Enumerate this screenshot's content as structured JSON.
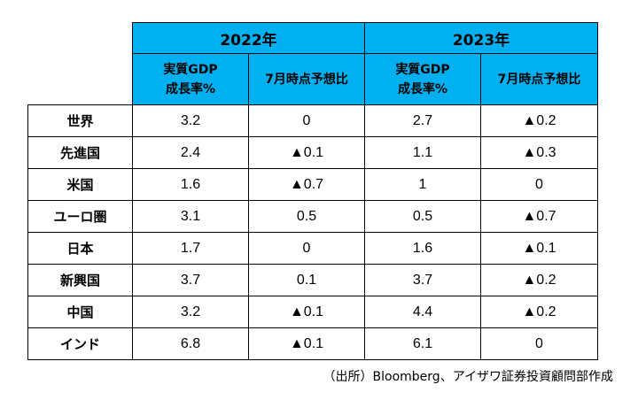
{
  "years": [
    "2022年",
    "2023年"
  ],
  "subheaders": [
    {
      "line1": "実質GDP",
      "line2": "成長率%"
    },
    {
      "line1": "7月時点予想比",
      "line2": ""
    },
    {
      "line1": "実質GDP",
      "line2": "成長率%"
    },
    {
      "line1": "7月時点予想比",
      "line2": ""
    }
  ],
  "rows": [
    {
      "name": "世界",
      "values": [
        "3.2",
        "0",
        "2.7",
        "▲0.2"
      ]
    },
    {
      "name": "先進国",
      "values": [
        "2.4",
        "▲0.1",
        "1.1",
        "▲0.3"
      ]
    },
    {
      "name": "米国",
      "values": [
        "1.6",
        "▲0.7",
        "1",
        "0"
      ]
    },
    {
      "name": "ユーロ圏",
      "values": [
        "3.1",
        "0.5",
        "0.5",
        "▲0.7"
      ]
    },
    {
      "name": "日本",
      "values": [
        "1.7",
        "0",
        "1.6",
        "▲0.1"
      ]
    },
    {
      "name": "新興国",
      "values": [
        "3.7",
        "0.1",
        "3.7",
        "▲0.2"
      ]
    },
    {
      "name": "中国",
      "values": [
        "3.2",
        "▲0.1",
        "4.4",
        "▲0.2"
      ]
    },
    {
      "name": "インド",
      "values": [
        "6.8",
        "▲0.1",
        "6.1",
        "0"
      ]
    }
  ],
  "colors": {
    "header_bg": "#00b0f0",
    "border": "#000000"
  },
  "source": "（出所）Bloomberg、アイザワ証券投資顧問部作成"
}
